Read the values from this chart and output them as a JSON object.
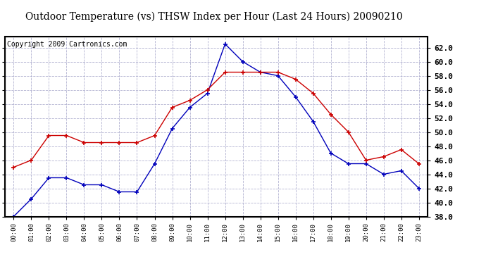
{
  "title": "Outdoor Temperature (vs) THSW Index per Hour (Last 24 Hours) 20090210",
  "copyright": "Copyright 2009 Cartronics.com",
  "hours": [
    "00:00",
    "01:00",
    "02:00",
    "03:00",
    "04:00",
    "05:00",
    "06:00",
    "07:00",
    "08:00",
    "09:00",
    "10:00",
    "11:00",
    "12:00",
    "13:00",
    "14:00",
    "15:00",
    "16:00",
    "17:00",
    "18:00",
    "19:00",
    "20:00",
    "21:00",
    "22:00",
    "23:00"
  ],
  "blue_data": [
    38.0,
    40.5,
    43.5,
    43.5,
    42.5,
    42.5,
    41.5,
    41.5,
    45.5,
    50.5,
    53.5,
    55.5,
    62.5,
    60.0,
    58.5,
    58.0,
    55.0,
    51.5,
    47.0,
    45.5,
    45.5,
    44.0,
    44.5,
    42.0
  ],
  "red_data": [
    45.0,
    46.0,
    49.5,
    49.5,
    48.5,
    48.5,
    48.5,
    48.5,
    49.5,
    53.5,
    54.5,
    56.0,
    58.5,
    58.5,
    58.5,
    58.5,
    57.5,
    55.5,
    52.5,
    50.0,
    46.0,
    46.5,
    47.5,
    45.5
  ],
  "ylim": [
    38.0,
    63.5
  ],
  "yticks": [
    38.0,
    40.0,
    42.0,
    44.0,
    46.0,
    48.0,
    50.0,
    52.0,
    54.0,
    56.0,
    58.0,
    60.0,
    62.0
  ],
  "blue_color": "#0000bb",
  "red_color": "#cc0000",
  "bg_color": "#ffffff",
  "grid_color": "#aaaacc",
  "title_fontsize": 10,
  "copyright_fontsize": 7
}
